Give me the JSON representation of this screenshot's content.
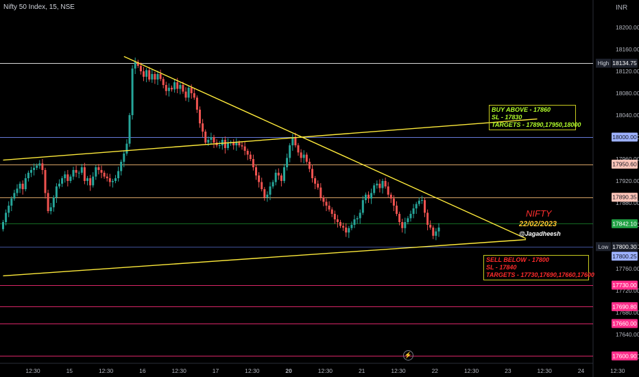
{
  "header": {
    "title": "Nifty 50 Index, 15, NSE",
    "currency": "INR"
  },
  "colors": {
    "up": "#26a69a",
    "down": "#ef5350",
    "trendline": "#ffeb3b"
  },
  "chart_data": {
    "type": "candlestick",
    "title": "Nifty 50 Index, 15, NSE",
    "ylim": [
      17590,
      18230
    ],
    "y_ticks": [
      "18200.00",
      "18160.00",
      "18120.00",
      "18080.00",
      "18040.00",
      "18000.00",
      "17960.00",
      "17920.00",
      "17880.00",
      "17840.00",
      "17800.00",
      "17760.00",
      "17720.00",
      "17680.00",
      "17640.00",
      "17600.00"
    ],
    "x_ticks": [
      "12:30",
      "15",
      "12:30",
      "16",
      "12:30",
      "17",
      "12:30",
      "20",
      "12:30",
      "21",
      "12:30",
      "22",
      "12:30",
      "23",
      "12:30",
      "24",
      "12:30"
    ],
    "x_tick_bars": [
      5,
      18,
      31,
      44,
      57,
      70,
      83,
      96,
      109,
      122,
      135,
      148,
      161,
      174,
      187,
      200,
      213
    ],
    "closes": [
      17845,
      17862,
      17875,
      17888,
      17898,
      17906,
      17915,
      17905,
      17925,
      17935,
      17940,
      17944,
      17948,
      17952,
      17940,
      17898,
      17865,
      17872,
      17890,
      17910,
      17915,
      17925,
      17932,
      17920,
      17928,
      17940,
      17935,
      17935,
      17945,
      17920,
      17925,
      17912,
      17928,
      17945,
      17940,
      17935,
      17928,
      17925,
      17918,
      17920,
      17925,
      17938,
      17955,
      17970,
      17988,
      18040,
      18125,
      18137,
      18130,
      18120,
      18110,
      18122,
      18105,
      18115,
      18105,
      18115,
      18106,
      18095,
      18084,
      18090,
      18087,
      18100,
      18088,
      18095,
      18083,
      18072,
      18090,
      18080,
      18072,
      18050,
      18025,
      18010,
      17990,
      17995,
      18000,
      17990,
      17985,
      17985,
      17995,
      17980,
      17990,
      17990,
      17985,
      17990,
      17985,
      17983,
      17975,
      17968,
      17960,
      17945,
      17930,
      17918,
      17905,
      17890,
      17895,
      17910,
      17918,
      17935,
      17930,
      17920,
      17945,
      17962,
      17985,
      18000,
      17985,
      17972,
      17962,
      17968,
      17955,
      17942,
      17925,
      17915,
      17908,
      17890,
      17882,
      17875,
      17868,
      17860,
      17850,
      17845,
      17838,
      17835,
      17826,
      17834,
      17840,
      17850,
      17852,
      17862,
      17885,
      17895,
      17888,
      17898,
      17912,
      17915,
      17907,
      17920,
      17910,
      17895,
      17888,
      17875,
      17860,
      17845,
      17834,
      17845,
      17852,
      17860,
      17870,
      17878,
      17884,
      17885,
      17862,
      17840,
      17835,
      17820,
      17828,
      17835
    ],
    "opens": [
      17832,
      17845,
      17862,
      17875,
      17888,
      17898,
      17906,
      17915,
      17905,
      17925,
      17935,
      17940,
      17944,
      17948,
      17952,
      17940,
      17898,
      17865,
      17872,
      17890,
      17910,
      17915,
      17925,
      17932,
      17920,
      17928,
      17940,
      17935,
      17935,
      17945,
      17920,
      17925,
      17912,
      17928,
      17945,
      17940,
      17935,
      17928,
      17925,
      17918,
      17920,
      17925,
      17938,
      17955,
      17970,
      17988,
      18040,
      18125,
      18137,
      18130,
      18120,
      18110,
      18122,
      18105,
      18115,
      18105,
      18115,
      18106,
      18095,
      18084,
      18090,
      18087,
      18100,
      18088,
      18095,
      18083,
      18072,
      18090,
      18080,
      18072,
      18050,
      18025,
      18010,
      17990,
      17995,
      18000,
      17990,
      17985,
      17985,
      17995,
      17980,
      17990,
      17990,
      17985,
      17990,
      17985,
      17983,
      17975,
      17968,
      17960,
      17945,
      17930,
      17918,
      17905,
      17890,
      17895,
      17910,
      17918,
      17935,
      17930,
      17920,
      17945,
      17962,
      17985,
      18000,
      17985,
      17972,
      17962,
      17968,
      17955,
      17942,
      17925,
      17915,
      17908,
      17890,
      17882,
      17875,
      17868,
      17860,
      17850,
      17845,
      17838,
      17835,
      17826,
      17834,
      17840,
      17850,
      17852,
      17862,
      17885,
      17895,
      17888,
      17898,
      17912,
      17915,
      17907,
      17920,
      17910,
      17895,
      17888,
      17875,
      17860,
      17845,
      17834,
      17845,
      17852,
      17860,
      17870,
      17878,
      17884,
      17885,
      17862,
      17840,
      17835,
      17820,
      17828
    ],
    "trendlines": [
      {
        "from_bar": 0,
        "from_price": 17958,
        "to_bar": 190,
        "to_price": 18033
      },
      {
        "from_bar": 43,
        "from_price": 18147,
        "to_bar": 186,
        "to_price": 17815
      },
      {
        "from_bar": 0,
        "from_price": 17747,
        "to_bar": 186,
        "to_price": 17813
      }
    ],
    "levels": [
      {
        "price": 18134.75,
        "color": "#ffffff",
        "axis_label": "18134.75",
        "tag": "High",
        "tag_bg": "#1e222d"
      },
      {
        "price": 18000.0,
        "color": "#7890ff",
        "axis_label": "18000.00",
        "tag_bg": "#9db1ff"
      },
      {
        "price": 17950.6,
        "color": "#ffc27a",
        "axis_label": "17950.60",
        "tag_bg": "#ffc5b9"
      },
      {
        "price": 17890.35,
        "color": "#ffc27a",
        "axis_label": "17890.35",
        "tag_bg": "#ffc5b9"
      },
      {
        "price": 17842.1,
        "color": "#1b7f2a",
        "axis_label": "17842.10",
        "tag_bg": "#1fa043",
        "light": true
      },
      {
        "price": 17800.3,
        "color": "#4a5fb4",
        "axis_label": "17800.30",
        "tag": "Low",
        "tag_bg": "#1e222d"
      },
      {
        "price": 17800.25,
        "color": "#4a5fb4",
        "axis_label": "17800.25",
        "tag_bg": "#9db1ff",
        "offset": 14
      },
      {
        "price": 17730.0,
        "color": "#ff2d7a",
        "axis_label": "17730.00",
        "tag_bg": "#ff2d8a",
        "light": true
      },
      {
        "price": 17690.8,
        "color": "#ff2d7a",
        "axis_label": "17690.80",
        "tag_bg": "#ff2d8a",
        "light": true
      },
      {
        "price": 17660.0,
        "color": "#ff2d7a",
        "axis_label": "17660.00",
        "tag_bg": "#ff2d8a",
        "light": true
      },
      {
        "price": 17600.9,
        "color": "#ff2d7a",
        "axis_label": "17600.90",
        "tag_bg": "#ff2d8a",
        "light": true
      }
    ]
  },
  "annotations": {
    "buy": [
      "BUY ABOVE - 17860",
      "SL - 17830",
      "TARGETS - 17890,17950,18000"
    ],
    "sell": [
      "SELL BELOW - 17800",
      "SL - 17840",
      "TARGETS - 17730,17690,17660,17600"
    ],
    "nifty_title": "NIFTY",
    "date": "22/02/2023",
    "author": "@Jagadheesh"
  },
  "icons": {
    "lightning": "lightning-icon"
  }
}
